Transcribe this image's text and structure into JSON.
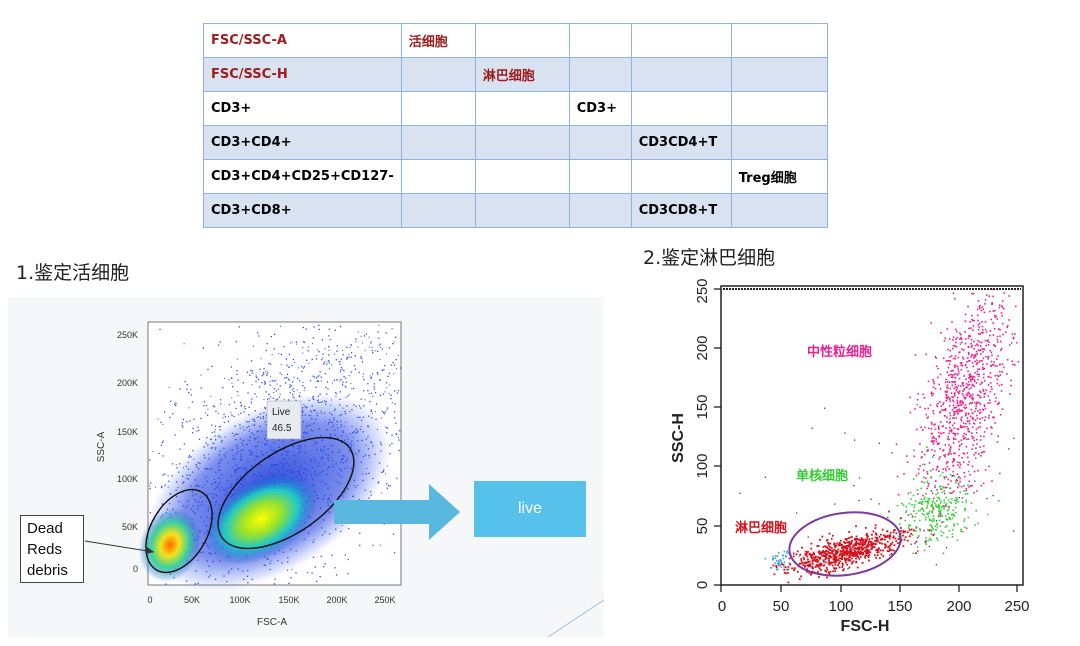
{
  "table": {
    "rows": [
      [
        "FSC/SSC-A",
        "活细胞",
        "",
        "",
        "",
        ""
      ],
      [
        "FSC/SSC-H",
        "",
        "淋巴细胞",
        "",
        "",
        ""
      ],
      [
        "CD3+",
        "",
        "",
        "CD3+",
        "",
        ""
      ],
      [
        "CD3+CD4+",
        "",
        "",
        "",
        "CD3CD4+T",
        ""
      ],
      [
        "CD3+CD4+CD25+CD127-",
        "",
        "",
        "",
        "",
        "Treg细胞"
      ],
      [
        "CD3+CD8+",
        "",
        "",
        "",
        "CD3CD8+T",
        ""
      ]
    ]
  },
  "captions": {
    "left": "1.鉴定活细胞",
    "right": "2.鉴定淋巴细胞"
  },
  "plot1": {
    "xlabel": "FSC-A",
    "ylabel": "SSC-A",
    "x_ticks": [
      "0",
      "50K",
      "100K",
      "150K",
      "200K",
      "250K"
    ],
    "y_ticks": [
      "0",
      "50K",
      "100K",
      "150K",
      "200K",
      "250K"
    ],
    "gate_label": "Live",
    "gate_value": "46.5",
    "legend_lines": [
      "Dead",
      "Reds",
      "debris"
    ],
    "arrow_target_label": "live"
  },
  "plot2": {
    "xlabel": "FSC-H",
    "ylabel": "SSC-H",
    "x_ticks": [
      "0",
      "50",
      "100",
      "150",
      "200",
      "250"
    ],
    "y_ticks": [
      "0",
      "50",
      "100",
      "150",
      "200",
      "250"
    ],
    "labels": {
      "neutrophil": "中性粒细胞",
      "monocyte": "单核细胞",
      "lymphocyte": "淋巴细胞"
    }
  },
  "colors": {
    "table_red": "#9c1b1b",
    "table_border": "#8db3e2",
    "table_stripe": "#d9e2f1",
    "live_box": "#56c1eb",
    "arrow": "#5ab7e0",
    "neutrophil": "#e8238f",
    "monocyte": "#33cc33",
    "lymphocyte": "#d4121d",
    "gate_circle": "#7d3a9c"
  }
}
